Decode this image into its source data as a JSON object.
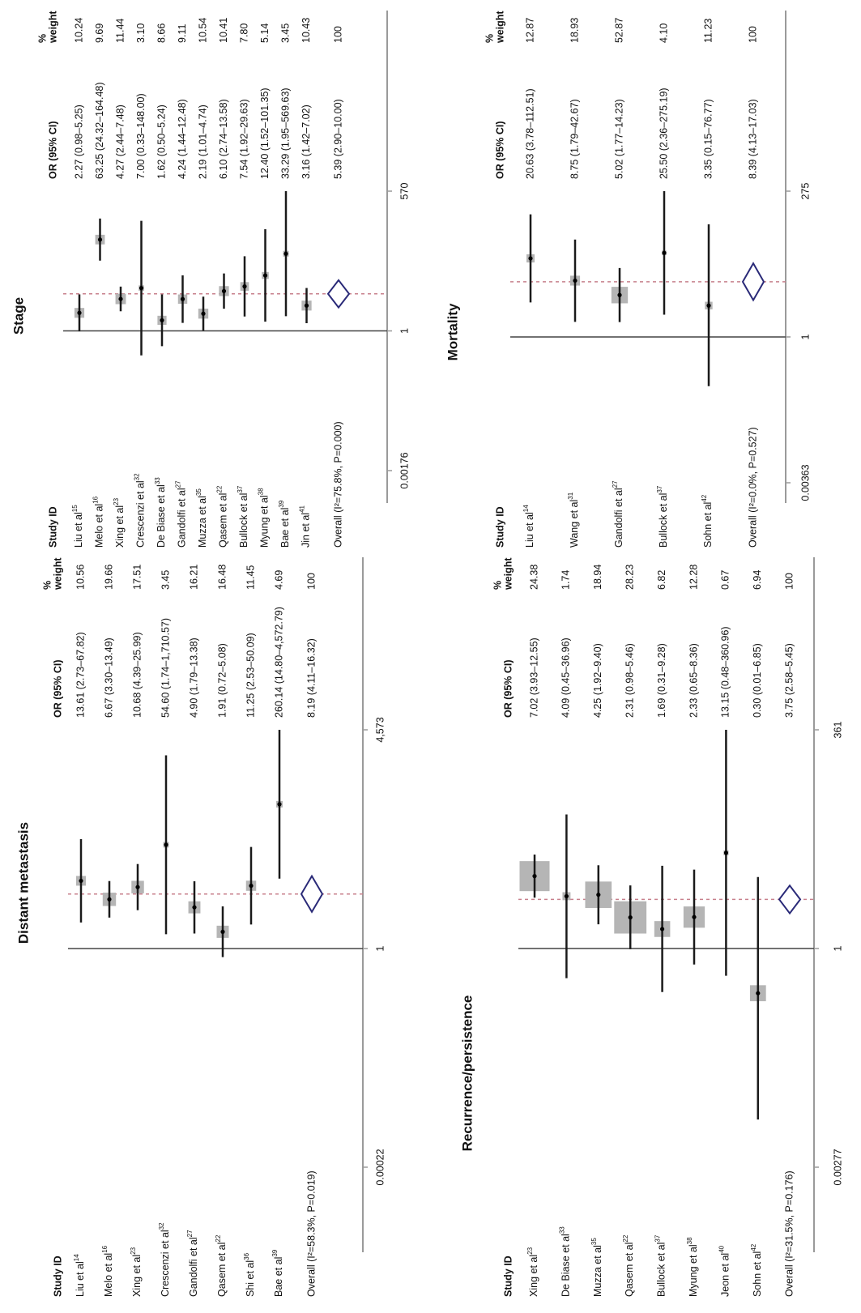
{
  "chart_data": [
    {
      "type": "forest",
      "title": "Distant metastasis",
      "headers": {
        "study": "Study ID",
        "ci": "OR (95% CI)",
        "weight": [
          "%",
          "weight"
        ]
      },
      "studies": [
        "Liu et al",
        "Melo et al",
        "Xing et al",
        "Crescenzi et al",
        "Gandolfi et al",
        "Qasem et al",
        "Shi et al",
        "Bae et al"
      ],
      "refs": [
        "14",
        "16",
        "23",
        "32",
        "27",
        "22",
        "36",
        "39"
      ],
      "values": [
        13.61,
        6.67,
        10.68,
        54.6,
        4.9,
        1.91,
        11.25,
        260.14
      ],
      "lower": [
        2.73,
        3.3,
        4.39,
        1.74,
        1.79,
        0.72,
        2.53,
        14.8
      ],
      "upper": [
        67.82,
        13.49,
        25.99,
        1710.57,
        13.38,
        5.08,
        50.09,
        4572.79
      ],
      "ci_labels": [
        "13.61 (2.73–67.82)",
        "6.67 (3.30–13.49)",
        "10.68 (4.39–25.99)",
        "54.60 (1.74–1,710.57)",
        "4.90 (1.79–13.38)",
        "1.91 (0.72–5.08)",
        "11.25 (2.53–50.09)",
        "260.14 (14.80–4,572.79)"
      ],
      "weights": [
        10.56,
        19.66,
        17.51,
        3.45,
        16.21,
        16.48,
        11.45,
        4.69
      ],
      "weight_labels": [
        "10.56",
        "19.66",
        "17.51",
        "3.45",
        "16.21",
        "16.48",
        "11.45",
        "4.69"
      ],
      "overall": {
        "label": "Overall (I²=58.3%, P=0.019)",
        "value": 8.19,
        "lower": 4.11,
        "upper": 16.32,
        "ci_label": "8.19 (4.11–16.32)",
        "weight": 100
      },
      "xscale": "log",
      "xlim": [
        0.00022,
        4573
      ],
      "xticks": [
        0.00022,
        1,
        {
          "value": 4573,
          "label": "4,573"
        }
      ],
      "reference_line": 1
    },
    {
      "type": "forest",
      "title": "Stage",
      "headers": {
        "study": "Study ID",
        "ci": "OR (95% CI)",
        "weight": [
          "%",
          "weight"
        ]
      },
      "studies": [
        "Liu et al",
        "Melo et al",
        "Xing et al",
        "Crescenzi et al",
        "De Biase et al",
        "Gandolfi et al",
        "Muzza et al",
        "Qasem et al",
        "Bullock et al",
        "Myung et al",
        "Bae et al",
        "Jin et al"
      ],
      "refs": [
        "15",
        "16",
        "23",
        "32",
        "33",
        "27",
        "35",
        "22",
        "37",
        "38",
        "39",
        "41"
      ],
      "values": [
        2.27,
        63.25,
        4.27,
        7.0,
        1.62,
        4.24,
        2.19,
        6.1,
        7.54,
        12.4,
        33.29,
        3.16
      ],
      "lower": [
        0.98,
        24.32,
        2.44,
        0.33,
        0.5,
        1.44,
        1.01,
        2.74,
        1.92,
        1.52,
        1.95,
        1.42
      ],
      "upper": [
        5.25,
        164.48,
        7.48,
        148.0,
        5.24,
        12.48,
        4.74,
        13.58,
        29.63,
        101.35,
        569.63,
        7.02
      ],
      "ci_labels": [
        "2.27 (0.98–5.25)",
        "63.25 (24.32–164.48)",
        "4.27 (2.44–7.48)",
        "7.00 (0.33–148.00)",
        "1.62 (0.50–5.24)",
        "4.24 (1.44–12.48)",
        "2.19 (1.01–4.74)",
        "6.10 (2.74–13.58)",
        "7.54 (1.92–29.63)",
        "12.40 (1.52–101.35)",
        "33.29 (1.95–569.63)",
        "3.16 (1.42–7.02)"
      ],
      "weights": [
        10.24,
        9.69,
        11.44,
        3.1,
        8.66,
        9.11,
        10.54,
        10.41,
        7.8,
        5.14,
        3.45,
        10.43
      ],
      "weight_labels": [
        "10.24",
        "9.69",
        "11.44",
        "3.10",
        "8.66",
        "9.11",
        "10.54",
        "10.41",
        "7.80",
        "5.14",
        "3.45",
        "10.43"
      ],
      "overall": {
        "label": "Overall (I²=75.8%, P=0.000)",
        "value": 5.39,
        "lower": 2.9,
        "upper": 10.0,
        "ci_label": "5.39 (2.90–10.00)",
        "weight": 100
      },
      "xscale": "log",
      "xlim": [
        0.00176,
        570
      ],
      "xticks": [
        0.00176,
        1,
        570
      ],
      "reference_line": 1
    },
    {
      "type": "forest",
      "title": "Recurrence/persistence",
      "headers": {
        "study": "Study ID",
        "ci": "OR (95% CI)",
        "weight": [
          "%",
          "weight"
        ]
      },
      "studies": [
        "Xing et al",
        "De Biase et al",
        "Muzza et al",
        "Qasem et al",
        "Bullock et al",
        "Myung et al",
        "Jeon et al",
        "Sohn et al"
      ],
      "refs": [
        "23",
        "33",
        "35",
        "22",
        "37",
        "38",
        "40",
        "42"
      ],
      "values": [
        7.02,
        4.09,
        4.25,
        2.31,
        1.69,
        2.33,
        13.15,
        0.3
      ],
      "lower": [
        3.93,
        0.45,
        1.92,
        0.98,
        0.31,
        0.65,
        0.48,
        0.01
      ],
      "upper": [
        12.55,
        36.96,
        9.4,
        5.46,
        9.28,
        8.36,
        360.96,
        6.85
      ],
      "ci_labels": [
        "7.02 (3.93–12.55)",
        "4.09 (0.45–36.96)",
        "4.25 (1.92–9.40)",
        "2.31 (0.98–5.46)",
        "1.69 (0.31–9.28)",
        "2.33 (0.65–8.36)",
        "13.15 (0.48–360.96)",
        "0.30 (0.01–6.85)"
      ],
      "weights": [
        24.38,
        1.74,
        18.94,
        28.23,
        6.82,
        12.28,
        0.67,
        6.94
      ],
      "weight_labels": [
        "24.38",
        "1.74",
        "18.94",
        "28.23",
        "6.82",
        "12.28",
        "0.67",
        "6.94"
      ],
      "overall": {
        "label": "Overall (I²=31.5%, P=0.176)",
        "value": 3.75,
        "lower": 2.58,
        "upper": 5.45,
        "ci_label": "3.75 (2.58–5.45)",
        "weight": 100
      },
      "xscale": "log",
      "xlim": [
        0.00277,
        361
      ],
      "xticks": [
        0.00277,
        1,
        361
      ],
      "reference_line": 1
    },
    {
      "type": "forest",
      "title": "Mortality",
      "headers": {
        "study": "Study ID",
        "ci": "OR (95% CI)",
        "weight": [
          "%",
          "weight"
        ]
      },
      "studies": [
        "Liu et al",
        "Wang et al",
        "Gandolfi et al",
        "Bullock et al",
        "Sohn et al"
      ],
      "refs": [
        "14",
        "31",
        "27",
        "37",
        "42"
      ],
      "values": [
        20.63,
        8.75,
        5.02,
        25.5,
        3.35
      ],
      "lower": [
        3.78,
        1.79,
        1.77,
        2.36,
        0.15
      ],
      "upper": [
        112.51,
        42.67,
        14.23,
        275.19,
        76.77
      ],
      "ci_labels": [
        "20.63 (3.78–112.51)",
        "8.75 (1.79–42.67)",
        "5.02 (1.77–14.23)",
        "25.50 (2.36–275.19)",
        "3.35 (0.15–76.77)"
      ],
      "weights": [
        12.87,
        18.93,
        52.87,
        4.1,
        11.23
      ],
      "weight_labels": [
        "12.87",
        "18.93",
        "52.87",
        "4.10",
        "11.23"
      ],
      "overall": {
        "label": "Overall (I²=0.0%, P=0.527)",
        "value": 8.39,
        "lower": 4.13,
        "upper": 17.03,
        "ci_label": "8.39 (4.13–17.03)",
        "weight": 100
      },
      "xscale": "log",
      "xlim": [
        0.00363,
        275
      ],
      "xticks": [
        0.00363,
        1,
        275
      ],
      "reference_line": 1
    }
  ]
}
